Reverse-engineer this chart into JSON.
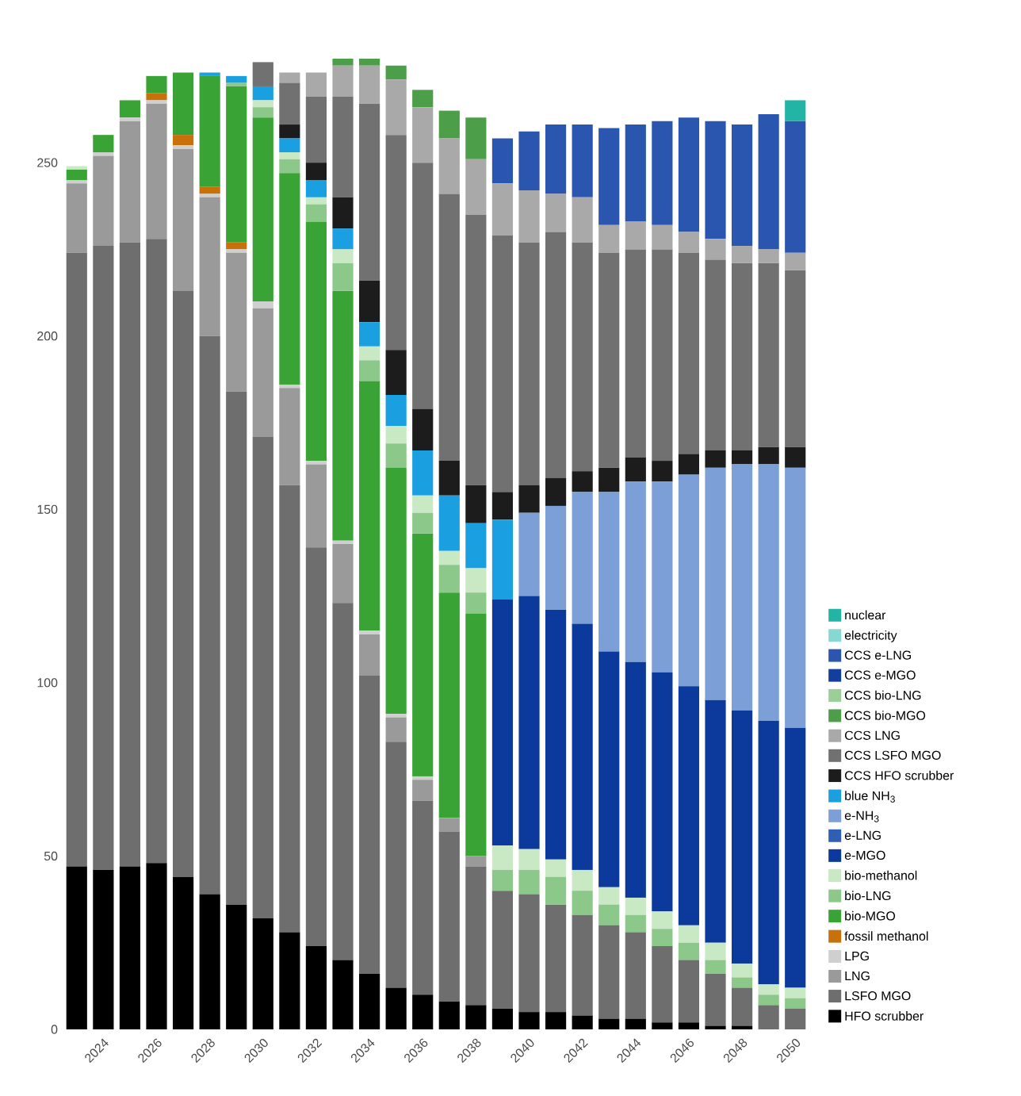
{
  "chart_data": {
    "type": "bar",
    "stacked": true,
    "legend": "right",
    "categories": [
      null,
      "2024",
      null,
      "2026",
      null,
      "2028",
      null,
      "2030",
      null,
      "2032",
      null,
      "2034",
      null,
      "2036",
      null,
      "2038",
      null,
      "2040",
      null,
      "2042",
      null,
      "2044",
      null,
      "2046",
      null,
      "2048",
      null,
      "2050"
    ],
    "ylim": [
      0,
      280
    ],
    "yticks": [
      0,
      50,
      100,
      150,
      200,
      250
    ],
    "series": [
      {
        "name": "HFO scrubber",
        "color": "#000000",
        "values": [
          47,
          46,
          47,
          48,
          44,
          39,
          36,
          32,
          28,
          24,
          20,
          16,
          12,
          10,
          8,
          7,
          6,
          5,
          5,
          4,
          3,
          3,
          2,
          2,
          1,
          1,
          0,
          0
        ]
      },
      {
        "name": "LSFO MGO",
        "color": "#6e6e6e",
        "values": [
          177,
          180,
          180,
          180,
          169,
          161,
          148,
          139,
          129,
          115,
          103,
          86,
          71,
          56,
          49,
          40,
          34,
          34,
          31,
          29,
          27,
          25,
          22,
          18,
          15,
          11,
          7,
          6
        ]
      },
      {
        "name": "LNG",
        "color": "#9a9a9a",
        "values": [
          20,
          26,
          35,
          39,
          41,
          40,
          40,
          37,
          28,
          24,
          17,
          12,
          7,
          6,
          4,
          3,
          0,
          0,
          0,
          0,
          0,
          0,
          0,
          0,
          0,
          0,
          0,
          0
        ]
      },
      {
        "name": "LPG",
        "color": "#cfcfcf",
        "values": [
          1,
          1,
          1,
          1,
          1,
          1,
          1,
          2,
          1,
          1,
          1,
          1,
          1,
          1,
          0,
          0,
          0,
          0,
          0,
          0,
          0,
          0,
          0,
          0,
          0,
          0,
          0,
          0
        ]
      },
      {
        "name": "fossil methanol",
        "color": "#c8700a",
        "values": [
          0,
          0,
          0,
          2,
          3,
          2,
          2,
          0,
          0,
          0,
          0,
          0,
          0,
          0,
          0,
          0,
          0,
          0,
          0,
          0,
          0,
          0,
          0,
          0,
          0,
          0,
          0,
          0
        ]
      },
      {
        "name": "bio-MGO",
        "color": "#3aa335",
        "values": [
          3,
          5,
          5,
          5,
          18,
          32,
          45,
          53,
          61,
          69,
          72,
          72,
          71,
          70,
          65,
          70,
          0,
          0,
          0,
          0,
          0,
          0,
          0,
          0,
          0,
          0,
          0,
          0
        ]
      },
      {
        "name": "bio-LNG",
        "color": "#8cc88a",
        "values": [
          0,
          0,
          0,
          0,
          0,
          0,
          1,
          3,
          4,
          5,
          8,
          6,
          7,
          6,
          8,
          6,
          6,
          7,
          8,
          7,
          6,
          5,
          5,
          5,
          4,
          3,
          3,
          3
        ]
      },
      {
        "name": "bio-methanol",
        "color": "#c9e8c4",
        "values": [
          1,
          0,
          0,
          0,
          0,
          0,
          0,
          2,
          2,
          2,
          4,
          4,
          5,
          5,
          4,
          7,
          7,
          6,
          5,
          6,
          5,
          5,
          5,
          5,
          5,
          4,
          3,
          3
        ]
      },
      {
        "name": "e-MGO",
        "color": "#0b3a9c",
        "values": [
          0,
          0,
          0,
          0,
          0,
          0,
          0,
          0,
          0,
          0,
          0,
          0,
          0,
          0,
          0,
          0,
          71,
          73,
          72,
          71,
          68,
          68,
          69,
          69,
          70,
          73,
          76,
          75
        ]
      },
      {
        "name": "e-LNG",
        "color": "#2f5fb3",
        "values": [
          0,
          0,
          0,
          0,
          0,
          0,
          0,
          0,
          0,
          0,
          0,
          0,
          0,
          0,
          0,
          0,
          0,
          0,
          0,
          0,
          0,
          0,
          0,
          0,
          0,
          0,
          0,
          0
        ]
      },
      {
        "name": "e-NH$_{3}$",
        "color": "#7b9fd6",
        "values": [
          0,
          0,
          0,
          0,
          0,
          0,
          0,
          0,
          0,
          0,
          0,
          0,
          0,
          0,
          0,
          0,
          0,
          24,
          30,
          38,
          46,
          52,
          55,
          61,
          67,
          71,
          74,
          75
        ]
      },
      {
        "name": "blue NH$_{3}$",
        "color": "#1aa0e0",
        "values": [
          0,
          0,
          0,
          0,
          0,
          1,
          2,
          4,
          4,
          5,
          6,
          7,
          9,
          13,
          16,
          13,
          23,
          0,
          0,
          0,
          0,
          0,
          0,
          0,
          0,
          0,
          0,
          0
        ]
      },
      {
        "name": "CCS HFO scrubber",
        "color": "#1c1c1c",
        "values": [
          0,
          0,
          0,
          0,
          0,
          0,
          0,
          0,
          4,
          5,
          9,
          12,
          13,
          12,
          10,
          11,
          8,
          8,
          8,
          6,
          7,
          7,
          6,
          6,
          5,
          4,
          5,
          6
        ]
      },
      {
        "name": "CCS LSFO MGO",
        "color": "#717171",
        "values": [
          0,
          0,
          0,
          0,
          0,
          0,
          0,
          7,
          12,
          19,
          29,
          51,
          62,
          71,
          77,
          78,
          74,
          70,
          71,
          66,
          62,
          60,
          61,
          58,
          55,
          54,
          53,
          51
        ]
      },
      {
        "name": "CCS LNG",
        "color": "#a9a9a9",
        "values": [
          0,
          0,
          0,
          0,
          0,
          0,
          0,
          0,
          3,
          7,
          9,
          11,
          16,
          16,
          16,
          16,
          15,
          15,
          11,
          13,
          8,
          8,
          7,
          6,
          6,
          5,
          4,
          5
        ]
      },
      {
        "name": "CCS bio-MGO",
        "color": "#4d9e48",
        "values": [
          0,
          0,
          0,
          0,
          0,
          0,
          0,
          0,
          0,
          0,
          2,
          3,
          4,
          5,
          8,
          12,
          0,
          0,
          0,
          0,
          0,
          0,
          0,
          0,
          0,
          0,
          0,
          0
        ]
      },
      {
        "name": "CCS bio-LNG",
        "color": "#9ccf98",
        "values": [
          0,
          0,
          0,
          0,
          0,
          0,
          0,
          0,
          0,
          0,
          0,
          0,
          0,
          0,
          0,
          0,
          0,
          0,
          0,
          0,
          0,
          0,
          0,
          0,
          0,
          0,
          0,
          0
        ]
      },
      {
        "name": "CCS e-MGO",
        "color": "#123f9e",
        "values": [
          0,
          0,
          0,
          0,
          0,
          0,
          0,
          0,
          0,
          0,
          0,
          0,
          0,
          0,
          0,
          0,
          0,
          0,
          0,
          0,
          0,
          0,
          0,
          0,
          0,
          0,
          0,
          0
        ]
      },
      {
        "name": "CCS e-LNG",
        "color": "#2a56b0",
        "values": [
          0,
          0,
          0,
          0,
          0,
          0,
          0,
          0,
          0,
          0,
          0,
          0,
          0,
          0,
          0,
          0,
          13,
          17,
          20,
          21,
          28,
          28,
          30,
          33,
          34,
          35,
          39,
          38
        ]
      },
      {
        "name": "electricity",
        "color": "#86d9d3",
        "values": [
          0,
          0,
          0,
          0,
          0,
          0,
          0,
          0,
          0,
          0,
          0,
          0,
          0,
          0,
          0,
          0,
          0,
          0,
          0,
          0,
          0,
          0,
          0,
          0,
          0,
          0,
          0,
          0
        ]
      },
      {
        "name": "nuclear",
        "color": "#22b5a5",
        "values": [
          0,
          0,
          0,
          0,
          0,
          0,
          0,
          0,
          0,
          0,
          0,
          0,
          0,
          0,
          0,
          0,
          0,
          0,
          0,
          0,
          0,
          0,
          0,
          0,
          0,
          0,
          0,
          6
        ]
      }
    ]
  }
}
